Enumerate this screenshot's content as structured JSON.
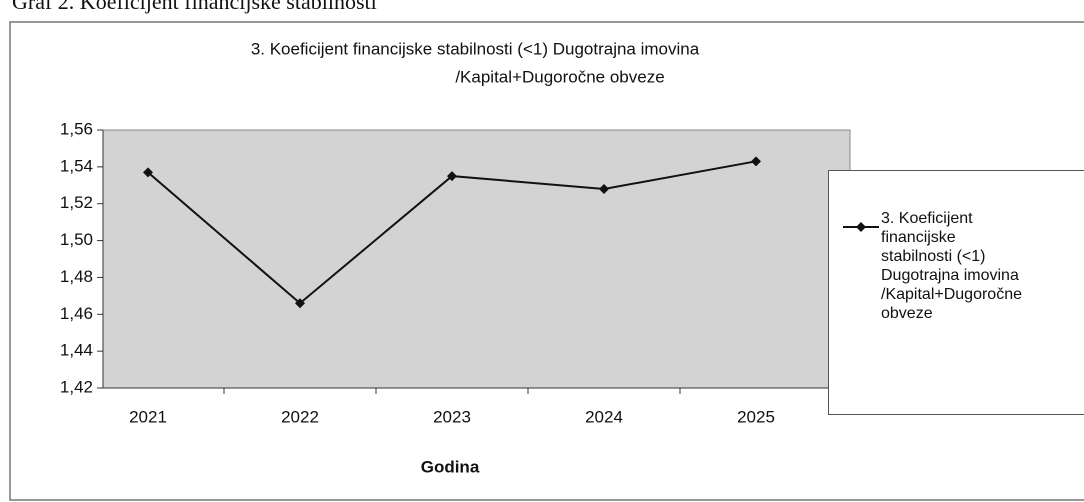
{
  "caption": "Graf 2. Koeficijent financijske stabilnosti",
  "chart_data": {
    "type": "line",
    "title": [
      "3. Koeficijent financijske stabilnosti  (<1) Dugotrajna imovina",
      "/Kapital+Dugoročne obveze"
    ],
    "x_label": "Godina",
    "categories": [
      "2021",
      "2022",
      "2023",
      "2024",
      "2025"
    ],
    "series": [
      {
        "name": "3. Koeficijent financijske stabilnosti  (<1) Dugotrajna imovina /Kapital+Dugoročne obveze",
        "color": "#111111",
        "values": [
          1.537,
          1.466,
          1.535,
          1.528,
          1.543
        ]
      }
    ],
    "ylim": [
      1.42,
      1.56
    ],
    "yticks": [
      {
        "value": 1.42,
        "label": "1,42"
      },
      {
        "value": 1.44,
        "label": "1,44"
      },
      {
        "value": 1.46,
        "label": "1,46"
      },
      {
        "value": 1.48,
        "label": "1,48"
      },
      {
        "value": 1.5,
        "label": "1,50"
      },
      {
        "value": 1.52,
        "label": "1,52"
      },
      {
        "value": 1.54,
        "label": "1,54"
      },
      {
        "value": 1.56,
        "label": "1,56"
      }
    ],
    "plot_background": "#d3d3d3",
    "legend": "right"
  }
}
